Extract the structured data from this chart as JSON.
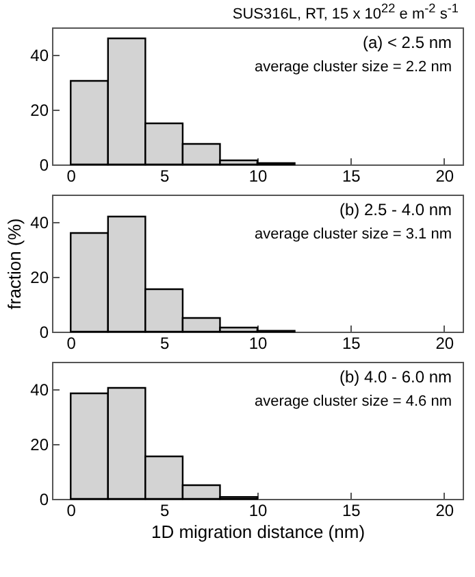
{
  "chart_data": [
    {
      "type": "histogram",
      "title": "SUS316L, RT, 15 x 10$^{22}$ e m$^{-2}$ s$^{-1}$",
      "annotations": [
        "(a) < 2.5 nm",
        "average cluster size = 2.2 nm"
      ],
      "bins": [
        0,
        2,
        4,
        6,
        8,
        10,
        12
      ],
      "values": [
        30.5,
        46,
        15,
        7.5,
        1.5,
        0.5
      ],
      "color": "#d3d3d3",
      "xlim": [
        -1,
        21
      ],
      "xticks": [
        0,
        5,
        10,
        15,
        20
      ],
      "ylim": [
        0,
        50
      ],
      "yticks": [
        0,
        20,
        40
      ],
      "grid": false
    },
    {
      "type": "histogram",
      "ylabel": "fraction (%)",
      "annotations": [
        "(b) 2.5 - 4.0 nm",
        "average cluster size = 3.1 nm"
      ],
      "bins": [
        0,
        2,
        4,
        6,
        8,
        10,
        12
      ],
      "values": [
        36,
        42,
        15.5,
        5,
        1.5,
        0.3
      ],
      "color": "#d3d3d3",
      "xlim": [
        -1,
        21
      ],
      "xticks": [
        0,
        5,
        10,
        15,
        20
      ],
      "ylim": [
        0,
        50
      ],
      "yticks": [
        0,
        20,
        40
      ],
      "grid": false
    },
    {
      "type": "histogram",
      "xlabel": "1D migration distance (nm)",
      "annotations": [
        "(b) 4.0 - 6.0 nm",
        "average cluster size = 4.6 nm"
      ],
      "bins": [
        0,
        2,
        4,
        6,
        8,
        10
      ],
      "values": [
        38.5,
        40.5,
        15.5,
        5,
        0.7
      ],
      "color": "#d3d3d3",
      "xlim": [
        -1,
        21
      ],
      "xticks": [
        0,
        5,
        10,
        15,
        20
      ],
      "ylim": [
        0,
        50
      ],
      "yticks": [
        0,
        20,
        40
      ],
      "grid": false
    }
  ]
}
